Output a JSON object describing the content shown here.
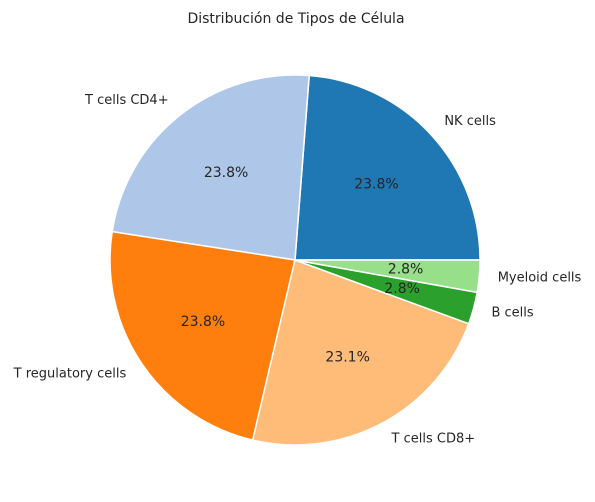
{
  "chart_data": {
    "type": "pie",
    "title": "Distribución de Tipos de Célula",
    "start_angle_deg": 0,
    "direction": "counterclockwise",
    "slices": [
      {
        "label": "NK cells",
        "value": 23.8,
        "pct_label": "23.8%",
        "color": "#1f77b4"
      },
      {
        "label": "T cells CD4+",
        "value": 23.8,
        "pct_label": "23.8%",
        "color": "#aec7e8"
      },
      {
        "label": "T regulatory cells",
        "value": 23.8,
        "pct_label": "23.8%",
        "color": "#ff7f0e"
      },
      {
        "label": "T cells CD8+",
        "value": 23.1,
        "pct_label": "23.1%",
        "color": "#ffbb78"
      },
      {
        "label": "B cells",
        "value": 2.8,
        "pct_label": "2.8%",
        "color": "#2ca02c"
      },
      {
        "label": "Myeloid cells",
        "value": 2.8,
        "pct_label": "2.8%",
        "color": "#98df8a"
      }
    ]
  }
}
